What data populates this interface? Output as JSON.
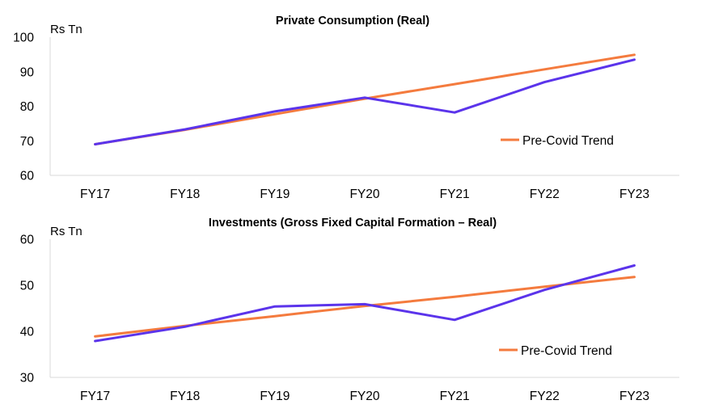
{
  "chart_data": [
    {
      "type": "line",
      "title": "Private Consumption (Real)",
      "ylabel": "Rs Tn",
      "xlabel": "",
      "categories": [
        "FY17",
        "FY18",
        "FY19",
        "FY20",
        "FY21",
        "FY22",
        "FY23"
      ],
      "ylim": [
        60,
        100
      ],
      "yticks": [
        60,
        70,
        80,
        90,
        100
      ],
      "grid": false,
      "legend_position": "right",
      "series": [
        {
          "values": [
            69.0,
            73.3,
            78.5,
            82.5,
            78.2,
            87.0,
            93.5
          ],
          "color": "#5b34eb"
        },
        {
          "name": "Pre-Covid Trend",
          "values": [
            69.0,
            73.2,
            77.7,
            82.2,
            86.4,
            90.7,
            94.9
          ],
          "color": "#f47b3e"
        }
      ]
    },
    {
      "type": "line",
      "title": "Investments (Gross Fixed Capital Formation – Real)",
      "ylabel": "Rs Tn",
      "xlabel": "",
      "categories": [
        "FY17",
        "FY18",
        "FY19",
        "FY20",
        "FY21",
        "FY22",
        "FY23"
      ],
      "ylim": [
        30,
        60
      ],
      "yticks": [
        30,
        40,
        50,
        60
      ],
      "grid": false,
      "legend_position": "right",
      "series": [
        {
          "values": [
            37.9,
            41.0,
            45.4,
            45.9,
            42.5,
            49.0,
            54.3
          ],
          "color": "#5b34eb"
        },
        {
          "name": "Pre-Covid Trend",
          "values": [
            38.9,
            41.2,
            43.3,
            45.5,
            47.5,
            49.7,
            51.8
          ],
          "color": "#f47b3e"
        }
      ]
    }
  ]
}
